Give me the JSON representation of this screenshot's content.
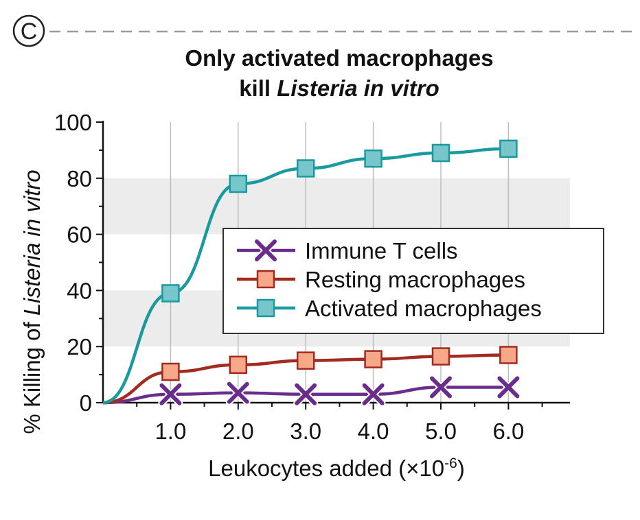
{
  "panel_letter": "C",
  "chart_data": {
    "type": "line",
    "title": "Only activated macrophages",
    "subtitle_prefix": "kill ",
    "subtitle_italic": "Listeria in vitro",
    "xlabel_prefix": "Leukocytes added (×10",
    "xlabel_sup": "-6",
    "xlabel_suffix": ")",
    "ylabel_prefix": "% Killing of ",
    "ylabel_italic_1": "Listeria",
    "ylabel_italic_2": "in vitro",
    "xlim": [
      0,
      6.9
    ],
    "ylim": [
      0,
      100
    ],
    "xticks": [
      1,
      2,
      3,
      4,
      5,
      6
    ],
    "xtick_labels": [
      "1.0",
      "2.0",
      "3.0",
      "4.0",
      "5.0",
      "6.0"
    ],
    "yticks": [
      0,
      20,
      40,
      60,
      80,
      100
    ],
    "ytick_labels": [
      "0",
      "20",
      "40",
      "60",
      "80",
      "100"
    ],
    "shaded_bands": [
      [
        20,
        40
      ],
      [
        60,
        80
      ]
    ],
    "legend_position": "center-right",
    "series": [
      {
        "name": "Immune T cells",
        "color": "#6b2d8c",
        "marker": "x",
        "x": [
          0,
          1,
          2,
          3,
          4,
          5,
          6
        ],
        "y": [
          0,
          3,
          3.5,
          3,
          3,
          5.5,
          5.5
        ]
      },
      {
        "name": "Resting macrophages",
        "color": "#a32a1e",
        "marker_fill": "#f7a889",
        "marker": "square",
        "x": [
          0,
          1,
          2,
          3,
          4,
          5,
          6
        ],
        "y": [
          0,
          11,
          13.5,
          15,
          15.5,
          16.5,
          17
        ]
      },
      {
        "name": "Activated macrophages",
        "color": "#1a9a9e",
        "marker_fill": "#76c6cc",
        "marker": "square",
        "x": [
          0,
          1,
          2,
          3,
          4,
          5,
          6
        ],
        "y": [
          0,
          39,
          78,
          83.5,
          87,
          89,
          90.5
        ]
      }
    ]
  }
}
